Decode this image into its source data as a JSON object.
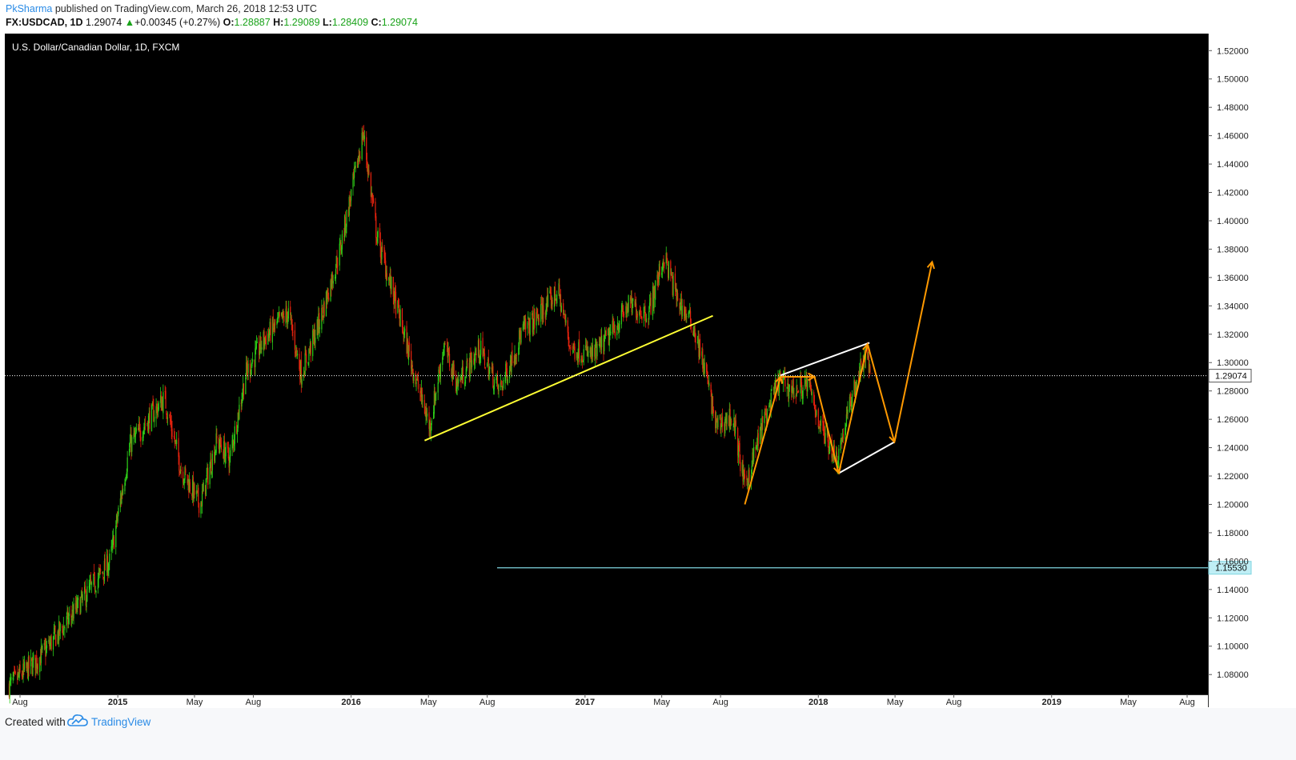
{
  "header": {
    "author": "PkSharma",
    "published": " published on TradingView.com, March 26, 2018 12:53 UTC",
    "symbol": "FX:USDCAD, 1D",
    "last": "1.29074",
    "change_arrow": "▲",
    "change": "+0.00345 (+0.27%)",
    "o_label": "O:",
    "o_value": "1.28887",
    "h_label": "H:",
    "h_value": "1.29089",
    "l_label": "L:",
    "l_value": "1.28409",
    "c_label": "C:",
    "c_value": "1.29074"
  },
  "footer": {
    "created_with": "Created with",
    "brand": "TradingView",
    "logo_icon": "tradingview-cloud-icon"
  },
  "colors": {
    "background": "#000000",
    "up_candle": "#2ecc18",
    "down_candle": "#e8230e",
    "trendline": "#ffff33",
    "projection": "#ff9900",
    "channel": "#ffffff",
    "support_line": "#7fd4e0",
    "axis_text": "#222222"
  },
  "chart_data": {
    "type": "candlestick",
    "title": "U.S. Dollar/Canadian Dollar, 1D, FXCM",
    "xlabel": "",
    "ylabel": "",
    "ylim": [
      1.066,
      1.532
    ],
    "y_ticks": [
      "1.08000",
      "1.10000",
      "1.12000",
      "1.14000",
      "1.16000",
      "1.18000",
      "1.20000",
      "1.22000",
      "1.24000",
      "1.26000",
      "1.28000",
      "1.30000",
      "1.32000",
      "1.34000",
      "1.36000",
      "1.38000",
      "1.40000",
      "1.42000",
      "1.44000",
      "1.46000",
      "1.48000",
      "1.50000",
      "1.52000"
    ],
    "x_ticks": [
      {
        "label": "Aug",
        "date": "2014-08-01"
      },
      {
        "label": "2015",
        "date": "2015-01-01"
      },
      {
        "label": "May",
        "date": "2015-05-01"
      },
      {
        "label": "Aug",
        "date": "2015-08-01"
      },
      {
        "label": "2016",
        "date": "2016-01-01"
      },
      {
        "label": "May",
        "date": "2016-05-01"
      },
      {
        "label": "Aug",
        "date": "2016-08-01"
      },
      {
        "label": "2017",
        "date": "2017-01-01"
      },
      {
        "label": "May",
        "date": "2017-05-01"
      },
      {
        "label": "Aug",
        "date": "2017-08-01"
      },
      {
        "label": "2018",
        "date": "2018-01-01"
      },
      {
        "label": "May",
        "date": "2018-05-01"
      },
      {
        "label": "Aug",
        "date": "2018-08-01"
      },
      {
        "label": "2019",
        "date": "2019-01-01"
      },
      {
        "label": "May",
        "date": "2019-05-01"
      },
      {
        "label": "Aug",
        "date": "2019-08-01"
      }
    ],
    "price_path": [
      [
        "2014-07-15",
        1.072
      ],
      [
        "2014-09-01",
        1.092
      ],
      [
        "2014-10-15",
        1.118
      ],
      [
        "2014-12-01",
        1.148
      ],
      [
        "2014-12-20",
        1.16
      ],
      [
        "2015-01-20",
        1.242
      ],
      [
        "2015-02-10",
        1.255
      ],
      [
        "2015-03-15",
        1.275
      ],
      [
        "2015-04-10",
        1.225
      ],
      [
        "2015-05-10",
        1.2
      ],
      [
        "2015-06-05",
        1.245
      ],
      [
        "2015-06-25",
        1.232
      ],
      [
        "2015-07-20",
        1.292
      ],
      [
        "2015-08-20",
        1.318
      ],
      [
        "2015-09-25",
        1.335
      ],
      [
        "2015-10-15",
        1.292
      ],
      [
        "2015-11-15",
        1.332
      ],
      [
        "2015-12-15",
        1.38
      ],
      [
        "2016-01-20",
        1.462
      ],
      [
        "2016-02-10",
        1.39
      ],
      [
        "2016-03-15",
        1.335
      ],
      [
        "2016-04-10",
        1.29
      ],
      [
        "2016-05-03",
        1.255
      ],
      [
        "2016-05-25",
        1.312
      ],
      [
        "2016-06-15",
        1.285
      ],
      [
        "2016-07-20",
        1.31
      ],
      [
        "2016-08-20",
        1.28
      ],
      [
        "2016-09-25",
        1.322
      ],
      [
        "2016-10-15",
        1.33
      ],
      [
        "2016-11-20",
        1.35
      ],
      [
        "2016-12-10",
        1.31
      ],
      [
        "2017-01-15",
        1.305
      ],
      [
        "2017-02-10",
        1.32
      ],
      [
        "2017-03-10",
        1.34
      ],
      [
        "2017-04-10",
        1.335
      ],
      [
        "2017-05-05",
        1.375
      ],
      [
        "2017-05-25",
        1.345
      ],
      [
        "2017-06-20",
        1.325
      ],
      [
        "2017-07-10",
        1.29
      ],
      [
        "2017-07-25",
        1.255
      ],
      [
        "2017-08-20",
        1.262
      ],
      [
        "2017-09-08",
        1.212
      ],
      [
        "2017-10-05",
        1.255
      ],
      [
        "2017-11-01",
        1.288
      ],
      [
        "2017-11-25",
        1.28
      ],
      [
        "2017-12-15",
        1.285
      ],
      [
        "2018-01-05",
        1.255
      ],
      [
        "2018-01-30",
        1.232
      ],
      [
        "2018-02-25",
        1.28
      ],
      [
        "2018-03-15",
        1.305
      ],
      [
        "2018-03-26",
        1.2907
      ]
    ],
    "last_price": 1.29074,
    "last_price_label": "1.29074",
    "support_level": 1.1553,
    "support_label": "1.15530",
    "drawings": {
      "trendline": [
        [
          "2016-04-25",
          1.245
        ],
        [
          "2017-07-20",
          1.333
        ]
      ],
      "projection_path": [
        [
          "2017-09-08",
          1.2
        ],
        [
          "2017-11-03",
          1.29
        ],
        [
          "2017-12-26",
          1.29
        ],
        [
          "2018-02-02",
          1.222
        ],
        [
          "2018-03-19",
          1.313
        ],
        [
          "2018-04-30",
          1.244
        ],
        [
          "2018-06-28",
          1.371
        ]
      ],
      "channel": [
        [
          [
            "2017-11-03",
            1.291
          ],
          [
            "2018-03-22",
            1.314
          ]
        ],
        [
          [
            "2018-02-02",
            1.222
          ],
          [
            "2018-04-30",
            1.244
          ]
        ]
      ]
    }
  }
}
